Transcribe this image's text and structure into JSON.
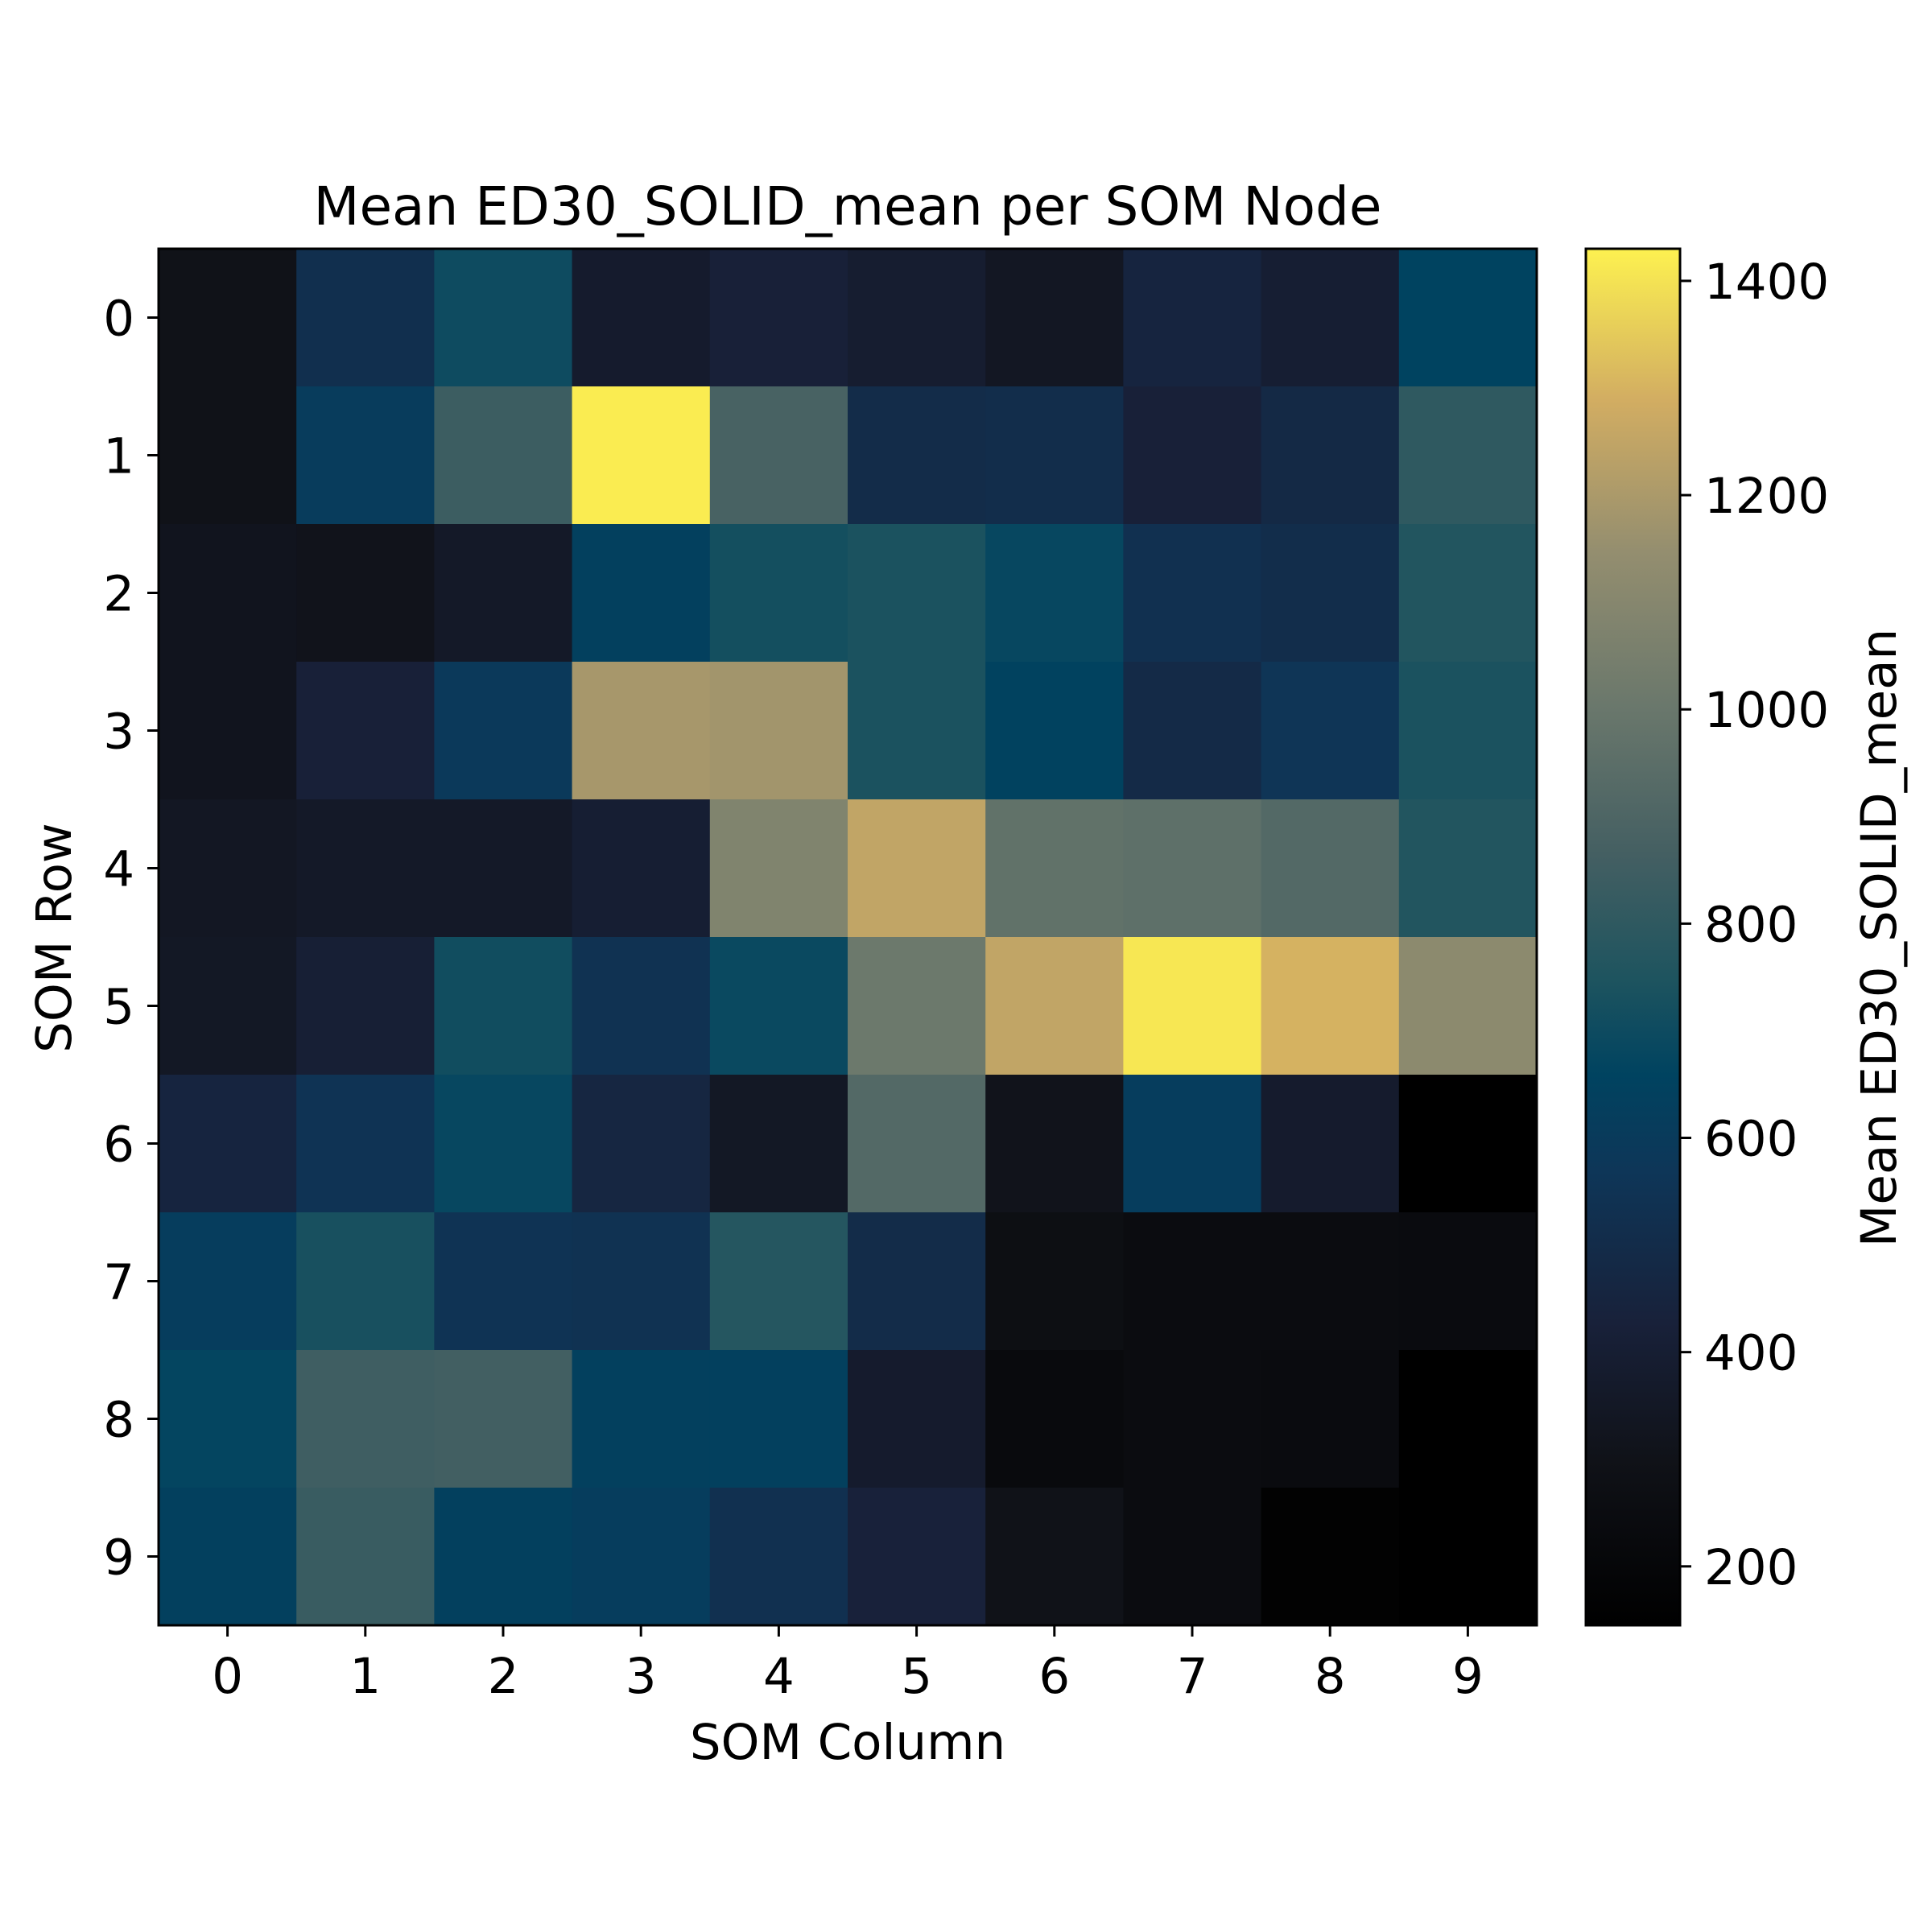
{
  "chart_data": {
    "type": "heatmap",
    "title": "Mean ED30_SOLID_mean per SOM Node",
    "xlabel": "SOM Column",
    "ylabel": "SOM Row",
    "x_ticks": [
      "0",
      "1",
      "2",
      "3",
      "4",
      "5",
      "6",
      "7",
      "8",
      "9"
    ],
    "y_ticks": [
      "0",
      "1",
      "2",
      "3",
      "4",
      "5",
      "6",
      "7",
      "8",
      "9"
    ],
    "colorbar": {
      "label": "Mean ED30_SOLID_mean",
      "range": [
        145,
        1430
      ],
      "ticks": [
        "200",
        "400",
        "600",
        "800",
        "1000",
        "1200",
        "1400"
      ],
      "colormap": "cividis-like"
    },
    "values": [
      [
        300,
        520,
        700,
        380,
        420,
        390,
        340,
        450,
        400,
        660
      ],
      [
        300,
        610,
        840,
        1420,
        880,
        500,
        510,
        420,
        480,
        800
      ],
      [
        320,
        310,
        360,
        640,
        720,
        740,
        680,
        530,
        510,
        760
      ],
      [
        320,
        420,
        590,
        1190,
        1180,
        740,
        650,
        490,
        560,
        740
      ],
      [
        340,
        360,
        360,
        400,
        1080,
        1250,
        970,
        960,
        920,
        760
      ],
      [
        350,
        410,
        710,
        540,
        690,
        1010,
        1250,
        1410,
        1300,
        1120
      ],
      [
        450,
        550,
        680,
        460,
        350,
        920,
        310,
        620,
        380,
        145
      ],
      [
        620,
        730,
        550,
        540,
        770,
        500,
        270,
        250,
        250,
        240
      ],
      [
        670,
        850,
        860,
        640,
        640,
        380,
        230,
        250,
        240,
        145
      ],
      [
        640,
        830,
        640,
        620,
        530,
        430,
        300,
        250,
        160,
        145
      ]
    ]
  }
}
